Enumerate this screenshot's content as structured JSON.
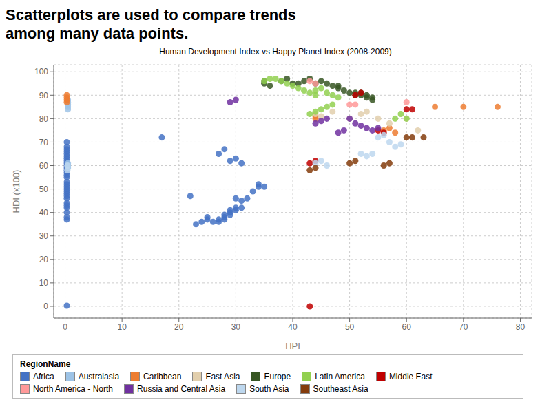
{
  "chart_data": {
    "type": "scatter",
    "title": "Scatterplots are used to compare trends\namong many data points.",
    "subtitle": "Human Development Index vs Happy Planet Index (2008-2009)",
    "xlabel": "HPI",
    "ylabel": "HDI (x100)",
    "xlim": [
      -2,
      82
    ],
    "ylim": [
      -5,
      103
    ],
    "xticks": [
      0,
      10,
      20,
      30,
      40,
      50,
      60,
      70,
      80
    ],
    "yticks": [
      0,
      10,
      20,
      30,
      40,
      50,
      60,
      70,
      80,
      90,
      100
    ],
    "grid": true,
    "legend": "lower right",
    "legend_title": "RegionName",
    "series": [
      {
        "name": "Africa",
        "color": "#4472C4",
        "x": [
          0.3,
          0.3,
          0.3,
          0.3,
          0.3,
          0.3,
          0.3,
          0.3,
          0.3,
          0.3,
          0.3,
          0.3,
          0.3,
          0.3,
          0.3,
          0.3,
          0.3,
          0.3,
          0.3,
          0.3,
          0.3,
          0.3,
          0.3,
          0.3,
          0.3,
          0.3,
          0.3,
          0.3,
          0.3,
          0.3,
          17,
          22,
          23,
          24,
          25,
          25,
          26,
          27,
          27,
          28,
          28,
          28,
          29,
          29,
          29,
          30,
          30,
          30,
          31,
          31,
          32,
          33,
          34,
          34,
          35,
          27,
          28,
          29,
          30,
          31
        ],
        "y": [
          0.3,
          37,
          38,
          40,
          42,
          43,
          44,
          46,
          47,
          48,
          49,
          50,
          51,
          52,
          53,
          55,
          56,
          57,
          58,
          59,
          60,
          61,
          62,
          63,
          64,
          65,
          66,
          67,
          68,
          70,
          72,
          47,
          35,
          36,
          37,
          38,
          36,
          36,
          37,
          37,
          38,
          39,
          39,
          40,
          41,
          41,
          42,
          46,
          42,
          45,
          46,
          49,
          51,
          52,
          51,
          65,
          67,
          62,
          63,
          61
        ]
      },
      {
        "name": "Australasia",
        "color": "#9DC3E6",
        "x": [
          0.5,
          0.5,
          0.5,
          0.5,
          0.5,
          0.5,
          0.5,
          0.5
        ],
        "y": [
          84,
          85,
          86,
          87,
          88,
          59,
          60,
          61
        ]
      },
      {
        "name": "Caribbean",
        "color": "#ED7D31",
        "x": [
          0.3,
          0.3,
          0.3,
          0.3,
          44,
          44,
          56,
          57,
          58,
          65,
          70,
          76
        ],
        "y": [
          90,
          89,
          88,
          87,
          80,
          81,
          75,
          76,
          74,
          85,
          85,
          85
        ]
      },
      {
        "name": "East Asia",
        "color": "#E2CFAD",
        "x": [
          44,
          45,
          47,
          50,
          52,
          53,
          55,
          57,
          60,
          62
        ],
        "y": [
          82,
          81,
          83,
          80,
          82,
          83,
          80,
          78,
          80,
          75
        ]
      },
      {
        "name": "Europe",
        "color": "#375623",
        "x": [
          35,
          38,
          39,
          40,
          41,
          42,
          43,
          44,
          45,
          46,
          47,
          48,
          48,
          49,
          50,
          51,
          51,
          52,
          52,
          53,
          53,
          54,
          54,
          35,
          36
        ],
        "y": [
          96,
          96,
          97,
          95,
          95,
          96,
          97,
          95,
          96,
          95,
          94,
          93,
          94,
          92,
          91,
          90,
          91,
          90,
          91,
          89,
          90,
          88,
          89,
          95,
          94
        ]
      },
      {
        "name": "Latin America",
        "color": "#92D050",
        "x": [
          35,
          36,
          37,
          38,
          39,
          40,
          41,
          42,
          43,
          44,
          44,
          45,
          46,
          47,
          48,
          43,
          44,
          45,
          46,
          47,
          60,
          58,
          59
        ],
        "y": [
          96,
          97,
          97,
          96,
          95,
          94,
          93,
          92,
          91,
          90,
          92,
          93,
          91,
          90,
          89,
          82,
          83,
          84,
          85,
          86,
          80,
          80,
          82
        ]
      },
      {
        "name": "Middle East",
        "color": "#C00000",
        "x": [
          43,
          43,
          44,
          51,
          52,
          60,
          61,
          55,
          56
        ],
        "y": [
          0,
          61,
          62,
          90,
          91,
          84,
          84,
          75,
          74
        ]
      },
      {
        "name": "North America - North",
        "color": "#FF9999",
        "x": [
          43,
          44,
          50,
          51,
          60
        ],
        "y": [
          96,
          95,
          86,
          86,
          87
        ]
      },
      {
        "name": "Russia and Central Asia",
        "color": "#7030A0",
        "x": [
          29,
          30,
          44,
          45,
          46,
          50,
          51,
          52,
          53,
          54,
          55,
          48,
          49
        ],
        "y": [
          87,
          88,
          78,
          79,
          80,
          80,
          78,
          77,
          76,
          75,
          76,
          74,
          75
        ]
      },
      {
        "name": "South Asia",
        "color": "#BDD7EE",
        "x": [
          0.4,
          0.4,
          44,
          45,
          46,
          52,
          53,
          54,
          55,
          56,
          57,
          58,
          59
        ],
        "y": [
          58,
          60,
          61,
          62,
          60,
          65,
          64,
          65,
          72,
          73,
          70,
          68,
          69
        ]
      },
      {
        "name": "Southeast Asia",
        "color": "#843C0C",
        "x": [
          43,
          44,
          50,
          51,
          56,
          57,
          60,
          61,
          63
        ],
        "y": [
          58,
          59,
          61,
          62,
          60,
          61,
          72,
          72,
          72
        ]
      }
    ]
  }
}
